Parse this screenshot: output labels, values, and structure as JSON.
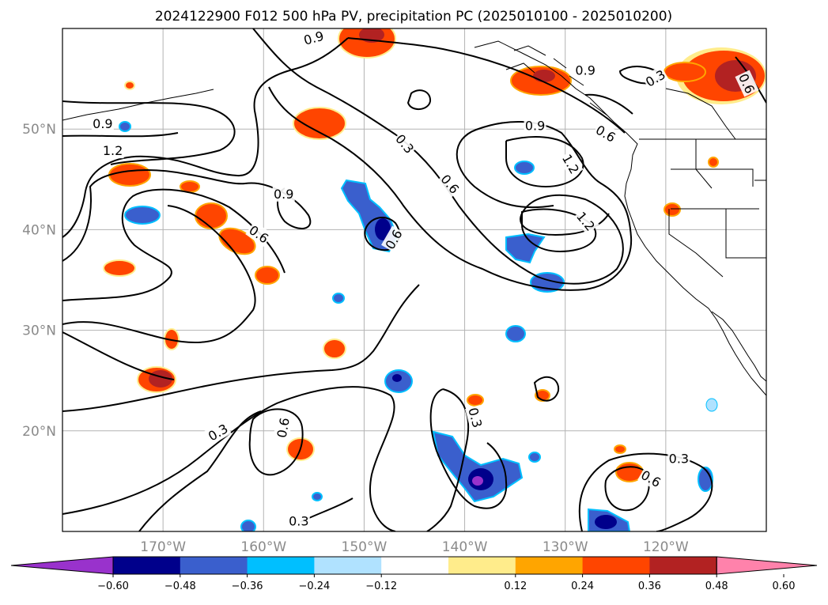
{
  "title": "2024122900 F012 500 hPa PV, precipitation PC (2025010100 - 2025010200)",
  "map": {
    "lon_range": [
      -180,
      -110
    ],
    "lat_range": [
      10,
      60
    ],
    "lat_ticks": [
      {
        "value": 50,
        "label": "50°N"
      },
      {
        "value": 40,
        "label": "40°N"
      },
      {
        "value": 30,
        "label": "30°N"
      },
      {
        "value": 20,
        "label": "20°N"
      }
    ],
    "lon_ticks": [
      {
        "value": -170,
        "label": "170°W"
      },
      {
        "value": -160,
        "label": "160°W"
      },
      {
        "value": -150,
        "label": "150°W"
      },
      {
        "value": -140,
        "label": "140°W"
      },
      {
        "value": -130,
        "label": "130°W"
      },
      {
        "value": -120,
        "label": "120°W"
      }
    ],
    "grid": true
  },
  "contour_labels": [
    {
      "text": "0.9",
      "lon": -176,
      "lat": 50.5,
      "rot": 0
    },
    {
      "text": "1.2",
      "lon": -175,
      "lat": 47.8,
      "rot": 0
    },
    {
      "text": "0.9",
      "lon": -158,
      "lat": 43.5,
      "rot": 0
    },
    {
      "text": "0.6",
      "lon": -160.5,
      "lat": 39.5,
      "rot": 35
    },
    {
      "text": "0.9",
      "lon": -155,
      "lat": 59,
      "rot": -15
    },
    {
      "text": "0.3",
      "lon": -146,
      "lat": 48.5,
      "rot": 50
    },
    {
      "text": "0.6",
      "lon": -141.5,
      "lat": 44.5,
      "rot": 50
    },
    {
      "text": "0.6",
      "lon": -147,
      "lat": 39,
      "rot": -60
    },
    {
      "text": "0.9",
      "lon": -133,
      "lat": 50.3,
      "rot": 0
    },
    {
      "text": "1.2",
      "lon": -129.5,
      "lat": 46.5,
      "rot": 60
    },
    {
      "text": "1.2",
      "lon": -128,
      "lat": 40.8,
      "rot": 50
    },
    {
      "text": "0.9",
      "lon": -128,
      "lat": 55.8,
      "rot": 0
    },
    {
      "text": "0.3",
      "lon": -121,
      "lat": 55,
      "rot": -30
    },
    {
      "text": "0.6",
      "lon": -112,
      "lat": 54.5,
      "rot": 65
    },
    {
      "text": "0.6",
      "lon": -126,
      "lat": 49.5,
      "rot": 30
    },
    {
      "text": "0.3",
      "lon": -164.5,
      "lat": 19.8,
      "rot": -30
    },
    {
      "text": "0.6",
      "lon": -158,
      "lat": 20.3,
      "rot": -80
    },
    {
      "text": "0.3",
      "lon": -139,
      "lat": 21.3,
      "rot": 75
    },
    {
      "text": "0.3",
      "lon": -118.7,
      "lat": 17.2,
      "rot": 0
    },
    {
      "text": "0.6",
      "lon": -121.5,
      "lat": 15.2,
      "rot": 30
    },
    {
      "text": "0.3",
      "lon": -156.5,
      "lat": 11,
      "rot": 0
    }
  ],
  "colorbar": {
    "colors": [
      "#9932cc",
      "#00008b",
      "#3a5fcd",
      "#00bfff",
      "#b0e2ff",
      "#ffffff",
      "#ffec8b",
      "#ffa500",
      "#ff4500",
      "#b22222",
      "#ff82ab"
    ],
    "tick_labels": [
      "−0.60",
      "−0.48",
      "−0.36",
      "−0.24",
      "−0.12",
      "0.12",
      "0.24",
      "0.36",
      "0.48",
      "0.60"
    ]
  }
}
